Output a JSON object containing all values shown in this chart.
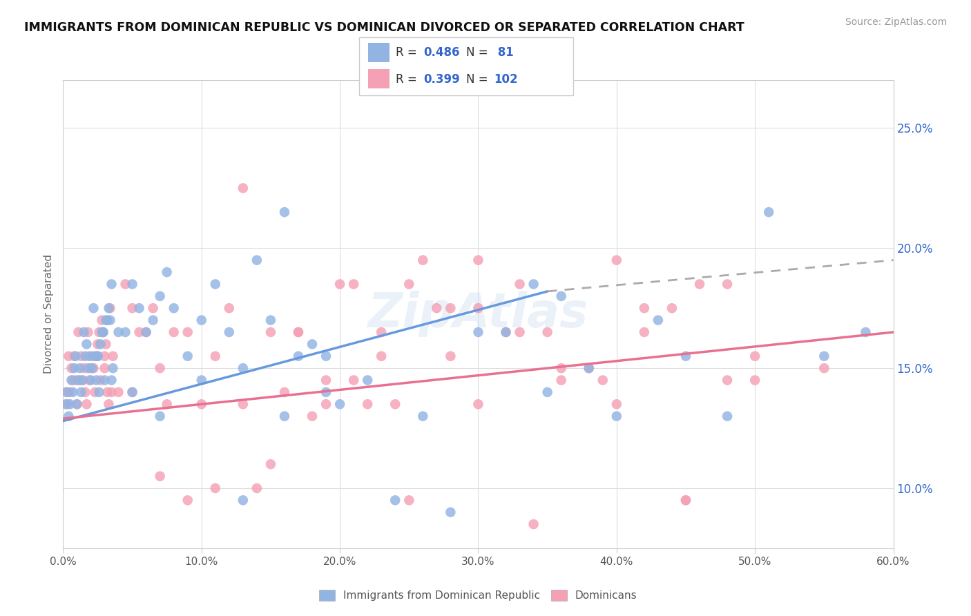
{
  "title": "IMMIGRANTS FROM DOMINICAN REPUBLIC VS DOMINICAN DIVORCED OR SEPARATED CORRELATION CHART",
  "source": "Source: ZipAtlas.com",
  "ylabel": "Divorced or Separated",
  "xmin": 0.0,
  "xmax": 60.0,
  "ymin": 7.5,
  "ymax": 27.0,
  "yticks": [
    10.0,
    15.0,
    20.0,
    25.0
  ],
  "xticks": [
    0,
    10,
    20,
    30,
    40,
    50,
    60
  ],
  "blue_R": 0.486,
  "blue_N": 81,
  "pink_R": 0.399,
  "pink_N": 102,
  "blue_color": "#92b4e3",
  "pink_color": "#f4a0b5",
  "blue_label": "Immigrants from Dominican Republic",
  "pink_label": "Dominicans",
  "blue_scatter_x": [
    0.2,
    0.3,
    0.4,
    0.5,
    0.6,
    0.7,
    0.8,
    0.9,
    1.0,
    1.1,
    1.2,
    1.3,
    1.4,
    1.5,
    1.6,
    1.7,
    1.8,
    1.9,
    2.0,
    2.1,
    2.2,
    2.3,
    2.4,
    2.5,
    2.6,
    2.7,
    2.8,
    2.9,
    3.0,
    3.1,
    3.2,
    3.3,
    3.4,
    3.5,
    3.6,
    4.0,
    4.5,
    5.0,
    5.5,
    6.0,
    6.5,
    7.0,
    7.5,
    8.0,
    9.0,
    10.0,
    11.0,
    12.0,
    13.0,
    14.0,
    15.0,
    16.0,
    17.0,
    18.0,
    19.0,
    20.0,
    22.0,
    24.0,
    26.0,
    28.0,
    30.0,
    32.0,
    34.0,
    35.0,
    36.0,
    38.0,
    40.0,
    43.0,
    45.0,
    48.0,
    51.0,
    55.0,
    58.0,
    2.5,
    3.5,
    5.0,
    7.0,
    10.0,
    13.0,
    16.0,
    19.0
  ],
  "blue_scatter_y": [
    13.5,
    14.0,
    13.0,
    13.5,
    14.5,
    14.0,
    15.0,
    15.5,
    13.5,
    14.5,
    15.0,
    14.0,
    14.5,
    16.5,
    15.5,
    16.0,
    15.0,
    15.5,
    14.5,
    15.0,
    17.5,
    15.5,
    14.5,
    15.5,
    14.0,
    16.0,
    16.5,
    16.5,
    14.5,
    17.0,
    17.0,
    17.5,
    17.0,
    18.5,
    15.0,
    16.5,
    16.5,
    18.5,
    17.5,
    16.5,
    17.0,
    18.0,
    19.0,
    17.5,
    15.5,
    17.0,
    18.5,
    16.5,
    15.0,
    19.5,
    17.0,
    21.5,
    15.5,
    16.0,
    15.5,
    13.5,
    14.5,
    9.5,
    13.0,
    9.0,
    16.5,
    16.5,
    18.5,
    14.0,
    18.0,
    15.0,
    13.0,
    17.0,
    15.5,
    13.0,
    21.5,
    15.5,
    16.5,
    15.5,
    14.5,
    14.0,
    13.0,
    14.5,
    9.5,
    13.0,
    14.0
  ],
  "pink_scatter_x": [
    0.2,
    0.3,
    0.4,
    0.5,
    0.6,
    0.7,
    0.8,
    0.9,
    1.0,
    1.1,
    1.2,
    1.3,
    1.4,
    1.5,
    1.6,
    1.7,
    1.8,
    1.9,
    2.0,
    2.1,
    2.2,
    2.3,
    2.4,
    2.5,
    2.6,
    2.7,
    2.8,
    2.9,
    3.0,
    3.1,
    3.2,
    3.3,
    3.4,
    3.5,
    3.6,
    4.0,
    4.5,
    5.0,
    5.5,
    6.0,
    6.5,
    7.0,
    7.5,
    8.0,
    9.0,
    10.0,
    11.0,
    12.0,
    13.0,
    14.0,
    15.0,
    16.0,
    17.0,
    18.0,
    19.0,
    20.0,
    21.0,
    22.0,
    23.0,
    24.0,
    25.0,
    26.0,
    28.0,
    30.0,
    32.0,
    34.0,
    36.0,
    38.0,
    40.0,
    42.0,
    44.0,
    46.0,
    48.0,
    50.0,
    3.0,
    5.0,
    7.0,
    9.0,
    11.0,
    13.0,
    15.0,
    17.0,
    19.0,
    21.0,
    23.0,
    25.0,
    27.0,
    30.0,
    33.0,
    36.0,
    39.0,
    42.0,
    45.0,
    48.0,
    30.0,
    35.0,
    40.0,
    45.0,
    50.0,
    55.0,
    28.0,
    33.0
  ],
  "pink_scatter_y": [
    14.0,
    13.5,
    15.5,
    14.0,
    15.0,
    14.5,
    15.5,
    14.5,
    13.5,
    16.5,
    14.5,
    15.5,
    14.5,
    15.0,
    14.0,
    13.5,
    16.5,
    14.5,
    15.0,
    15.5,
    15.0,
    14.0,
    15.5,
    16.0,
    16.5,
    14.5,
    17.0,
    16.5,
    15.5,
    16.0,
    14.0,
    13.5,
    17.5,
    14.0,
    15.5,
    14.0,
    18.5,
    14.0,
    16.5,
    16.5,
    17.5,
    15.0,
    13.5,
    16.5,
    16.5,
    13.5,
    15.5,
    17.5,
    22.5,
    10.0,
    16.5,
    14.0,
    16.5,
    13.0,
    13.5,
    18.5,
    18.5,
    13.5,
    16.5,
    13.5,
    9.5,
    19.5,
    15.5,
    17.5,
    16.5,
    8.5,
    14.5,
    15.0,
    19.5,
    17.5,
    17.5,
    18.5,
    18.5,
    15.5,
    15.0,
    17.5,
    10.5,
    9.5,
    10.0,
    13.5,
    11.0,
    16.5,
    14.5,
    14.5,
    15.5,
    18.5,
    17.5,
    13.5,
    16.5,
    15.0,
    14.5,
    16.5,
    9.5,
    14.5,
    19.5,
    16.5,
    13.5,
    9.5,
    14.5,
    15.0,
    17.5,
    18.5
  ],
  "blue_line_x0": 0.0,
  "blue_line_y0": 12.8,
  "blue_line_x1": 35.0,
  "blue_line_y1": 18.2,
  "blue_dash_x0": 35.0,
  "blue_dash_y0": 18.2,
  "blue_dash_x1": 60.0,
  "blue_dash_y1": 19.5,
  "pink_line_x0": 0.0,
  "pink_line_y0": 12.9,
  "pink_line_x1": 60.0,
  "pink_line_y1": 16.5
}
